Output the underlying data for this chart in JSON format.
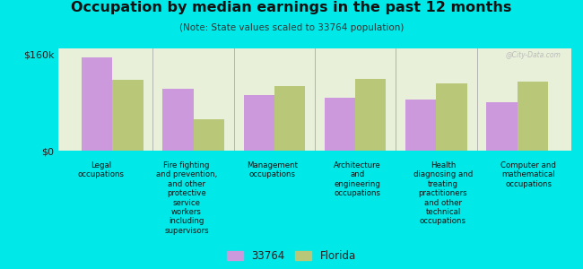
{
  "title": "Occupation by median earnings in the past 12 months",
  "subtitle": "(Note: State values scaled to 33764 population)",
  "background_color": "#00e8e8",
  "plot_bg_color": "#e8f0da",
  "categories": [
    "Legal\noccupations",
    "Fire fighting\nand prevention,\nand other\nprotective\nservice\nworkers\nincluding\nsupervisors",
    "Management\noccupations",
    "Architecture\nand\nengineering\noccupations",
    "Health\ndiagnosing and\ntreating\npractitioners\nand other\ntechnical\noccupations",
    "Computer and\nmathematical\noccupations"
  ],
  "values_33764": [
    155000,
    103000,
    92000,
    88000,
    85000,
    80000
  ],
  "values_florida": [
    118000,
    52000,
    107000,
    120000,
    112000,
    115000
  ],
  "color_33764": "#cc99dd",
  "color_florida": "#b8c878",
  "ylim": [
    0,
    170000
  ],
  "yticks": [
    0,
    160000
  ],
  "ytick_labels": [
    "$0",
    "$160k"
  ],
  "legend_label_33764": "33764",
  "legend_label_florida": "Florida",
  "watermark": "@City-Data.com",
  "bar_width": 0.38
}
